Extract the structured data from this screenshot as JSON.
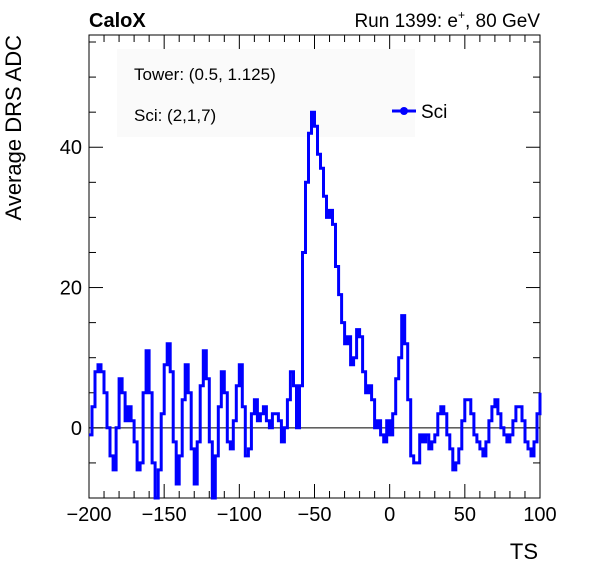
{
  "header": {
    "experiment": "CaloX",
    "run_prefix": "Run 1399: e",
    "run_superscript": "+",
    "run_suffix": ", 80 GeV"
  },
  "annotations": {
    "tower": "Tower: (0.5, 1.125)",
    "sci": "Sci: (2,1,7)"
  },
  "legend": {
    "label": "Sci",
    "color": "#0000ff",
    "position": "top-right"
  },
  "chart_data": {
    "type": "line",
    "xlabel": "TS",
    "ylabel": "Average DRS ADC",
    "xlim": [
      -200,
      100
    ],
    "ylim": [
      -10,
      56
    ],
    "xticks": [
      -200,
      -150,
      -100,
      -50,
      0,
      50,
      100
    ],
    "xtick_labels": [
      "−200",
      "−150",
      "−100",
      "−50",
      "0",
      "50",
      "100"
    ],
    "yticks": [
      0,
      20,
      40
    ],
    "ytick_labels": [
      "0",
      "20",
      "40"
    ],
    "zero_line": true,
    "grid": false,
    "series": [
      {
        "name": "Sci",
        "color": "#0000ff",
        "x": [
          -200,
          -198,
          -196,
          -194,
          -192,
          -190,
          -188,
          -186,
          -184,
          -182,
          -180,
          -178,
          -176,
          -174,
          -172,
          -170,
          -168,
          -166,
          -164,
          -162,
          -160,
          -158,
          -156,
          -154,
          -152,
          -150,
          -148,
          -146,
          -144,
          -142,
          -140,
          -138,
          -136,
          -134,
          -132,
          -130,
          -128,
          -126,
          -124,
          -122,
          -120,
          -118,
          -116,
          -114,
          -112,
          -110,
          -108,
          -106,
          -104,
          -102,
          -100,
          -98,
          -96,
          -94,
          -92,
          -90,
          -88,
          -86,
          -84,
          -82,
          -80,
          -78,
          -76,
          -74,
          -72,
          -70,
          -68,
          -66,
          -64,
          -62,
          -60,
          -58,
          -56,
          -54,
          -52,
          -50,
          -48,
          -46,
          -44,
          -42,
          -40,
          -38,
          -36,
          -34,
          -32,
          -30,
          -28,
          -26,
          -24,
          -22,
          -20,
          -18,
          -16,
          -14,
          -12,
          -10,
          -8,
          -6,
          -4,
          -2,
          0,
          2,
          4,
          6,
          8,
          10,
          12,
          14,
          16,
          18,
          20,
          22,
          24,
          26,
          28,
          30,
          32,
          34,
          36,
          38,
          40,
          42,
          44,
          46,
          48,
          50,
          52,
          54,
          56,
          58,
          60,
          62,
          64,
          66,
          68,
          70,
          72,
          74,
          76,
          78,
          80,
          82,
          84,
          86,
          88,
          90,
          92,
          94,
          96,
          98,
          100
        ],
        "y": [
          -1,
          3,
          8,
          9,
          8,
          5,
          0,
          -4,
          -6,
          0,
          7,
          5,
          1,
          3,
          1,
          -2,
          -6,
          -5,
          5,
          11,
          5,
          -5,
          -10,
          -6,
          2,
          9,
          12,
          8,
          -2,
          -8,
          -4,
          4,
          9,
          5,
          -3,
          -8,
          -2,
          6,
          11,
          7,
          -2,
          -10,
          -4,
          3,
          8,
          5,
          -2,
          -3,
          1,
          6,
          9,
          3,
          -4,
          -3,
          2,
          4,
          1,
          2,
          3,
          1,
          0,
          2,
          2,
          1,
          -2,
          0,
          4,
          8,
          6,
          0,
          6,
          25,
          35,
          42,
          45,
          43,
          39,
          37,
          33,
          30,
          31,
          29,
          23,
          19,
          15,
          12,
          13,
          9,
          10,
          14,
          13,
          8,
          5,
          6,
          4,
          0,
          1,
          -1,
          -2,
          1,
          -1,
          2,
          7,
          10,
          16,
          12,
          4,
          -4,
          -5,
          -5,
          -1,
          -2,
          -1,
          -3,
          -2,
          -1,
          2,
          3,
          2,
          -1,
          -3,
          -6,
          -5,
          -3,
          1,
          4,
          4,
          2,
          -1,
          -2,
          -3,
          -4,
          -2,
          1,
          3,
          4,
          2,
          0,
          -1,
          -2,
          -1,
          1,
          3,
          3,
          1,
          -2,
          -3,
          -4,
          -2,
          2,
          5
        ]
      }
    ]
  }
}
